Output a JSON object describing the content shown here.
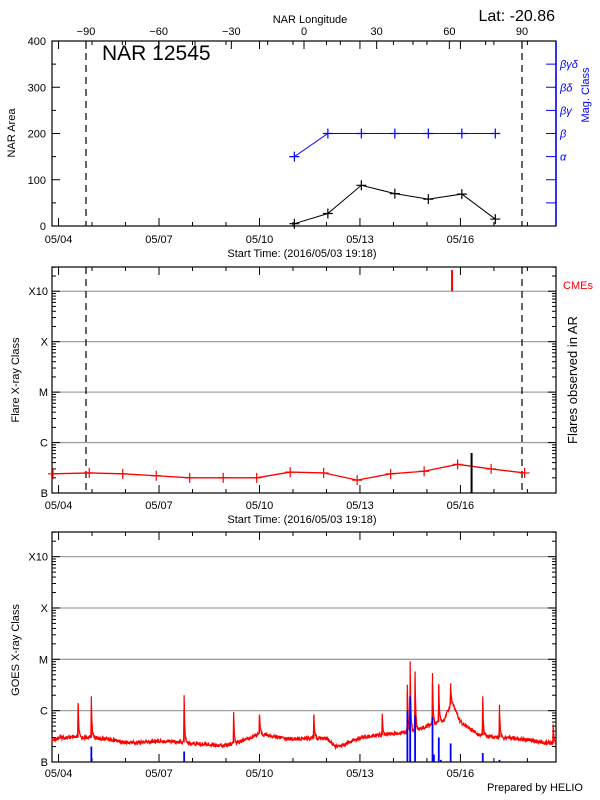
{
  "header": {
    "lat_label": "Lat: -20.86",
    "region_title": "NAR 12545",
    "footer": "Prepared by HELIO"
  },
  "colors": {
    "area": "#000000",
    "mag_class": "#0000ff",
    "flare": "#ff0000",
    "cme": "#ff0000",
    "goes": "#ff0000",
    "goes_events": "#0000ff",
    "grid": "#a0a0a0"
  },
  "chart_data": [
    {
      "type": "line",
      "title": "NAR 12545",
      "xlabel": "Start Time: (2016/05/03 19:18)",
      "x2label": "NAR Longitude",
      "ylabel": "NAR Area",
      "y2label": "Mag. Class",
      "xlim": [
        "2016-05-03 19:18",
        "2016-05-18 20:30"
      ],
      "xtick_labels": [
        "05/04",
        "05/07",
        "05/10",
        "05/13",
        "05/16"
      ],
      "x2lim": [
        -90,
        90
      ],
      "x2tick_labels": [
        "-90",
        "-60",
        "-30",
        "0",
        "30",
        "60",
        "90"
      ],
      "ylim": [
        0,
        400
      ],
      "ytick_labels": [
        "0",
        "100",
        "200",
        "300",
        "400"
      ],
      "y2tick_labels": [
        "α",
        "β",
        "βγ",
        "βδ",
        "βγδ"
      ],
      "limb_longitudes": [
        -90,
        90
      ],
      "area": [
        [
          "2016-05-11 01:00",
          5
        ],
        [
          "2016-05-12 01:00",
          27
        ],
        [
          "2016-05-13 01:00",
          88
        ],
        [
          "2016-05-14 01:00",
          70
        ],
        [
          "2016-05-15 01:00",
          58
        ],
        [
          "2016-05-16 01:00",
          69
        ],
        [
          "2016-05-17 01:00",
          15
        ]
      ],
      "mag_class": [
        [
          "2016-05-11 01:00",
          "α"
        ],
        [
          "2016-05-12 01:00",
          "β"
        ],
        [
          "2016-05-13 01:00",
          "β"
        ],
        [
          "2016-05-14 01:00",
          "β"
        ],
        [
          "2016-05-15 01:00",
          "β"
        ],
        [
          "2016-05-16 01:00",
          "β"
        ],
        [
          "2016-05-17 01:00",
          "β"
        ]
      ]
    },
    {
      "type": "line",
      "xlabel": "Start Time: (2016/05/03 19:18)",
      "ylabel": "Flare X-ray Class",
      "y2label": "Flares observed in AR",
      "cme_label": "CMEs",
      "scale": "log",
      "ytick_labels": [
        "B",
        "C",
        "M",
        "X",
        "X10"
      ],
      "xtick_labels": [
        "05/04",
        "05/07",
        "05/10",
        "05/13",
        "05/16"
      ],
      "flare_class": [
        [
          "2016-05-03 20:00",
          "B2.4"
        ],
        [
          "2016-05-04 22:00",
          "B2.5"
        ],
        [
          "2016-05-05 22:00",
          "B2.4"
        ],
        [
          "2016-05-06 22:00",
          "B2.2"
        ],
        [
          "2016-05-07 22:00",
          "B2.0"
        ],
        [
          "2016-05-08 22:00",
          "B2.0"
        ],
        [
          "2016-05-09 22:00",
          "B2.0"
        ],
        [
          "2016-05-10 22:00",
          "B2.6"
        ],
        [
          "2016-05-11 22:00",
          "B2.5"
        ],
        [
          "2016-05-12 22:00",
          "B1.8"
        ],
        [
          "2016-05-13 22:00",
          "B2.4"
        ],
        [
          "2016-05-14 22:00",
          "B2.7"
        ],
        [
          "2016-05-15 22:00",
          "B3.7"
        ],
        [
          "2016-05-16 22:00",
          "B3.0"
        ],
        [
          "2016-05-17 22:00",
          "B2.5"
        ]
      ],
      "cmes": [
        "2016-05-15 18:00"
      ],
      "flares_observed": [
        [
          "2016-05-16 08:00",
          "B6.2"
        ]
      ]
    },
    {
      "type": "line",
      "ylabel": "GOES X-ray Class",
      "scale": "log",
      "ytick_labels": [
        "B",
        "C",
        "M",
        "X",
        "X10"
      ],
      "xtick_labels": [
        "05/04",
        "05/07",
        "05/10",
        "05/13",
        "05/16"
      ],
      "background": [
        [
          "2016-05-03 19:18",
          "B2.6"
        ],
        [
          "2016-05-04 00:00",
          "B3.0"
        ],
        [
          "2016-05-04 12:00",
          "B3.0"
        ],
        [
          "2016-05-05 00:00",
          "B3.0"
        ],
        [
          "2016-05-05 12:00",
          "B2.8"
        ],
        [
          "2016-05-06 00:00",
          "B2.4"
        ],
        [
          "2016-05-06 12:00",
          "B2.4"
        ],
        [
          "2016-05-07 00:00",
          "B2.6"
        ],
        [
          "2016-05-07 12:00",
          "B2.5"
        ],
        [
          "2016-05-08 00:00",
          "B2.3"
        ],
        [
          "2016-05-08 12:00",
          "B2.2"
        ],
        [
          "2016-05-09 00:00",
          "B2.1"
        ],
        [
          "2016-05-09 12:00",
          "B2.6"
        ],
        [
          "2016-05-10 00:00",
          "B3.6"
        ],
        [
          "2016-05-10 12:00",
          "B3.1"
        ],
        [
          "2016-05-11 00:00",
          "B2.8"
        ],
        [
          "2016-05-11 12:00",
          "B2.9"
        ],
        [
          "2016-05-12 00:00",
          "B2.9"
        ],
        [
          "2016-05-12 06:00",
          "B2.0"
        ],
        [
          "2016-05-12 12:00",
          "B2.1"
        ],
        [
          "2016-05-13 00:00",
          "B3.0"
        ],
        [
          "2016-05-13 12:00",
          "B3.3"
        ],
        [
          "2016-05-14 00:00",
          "B3.5"
        ],
        [
          "2016-05-14 12:00",
          "B4.0"
        ],
        [
          "2016-05-15 00:00",
          "B5.0"
        ],
        [
          "2016-05-15 12:00",
          "B6.5"
        ],
        [
          "2016-05-15 18:00",
          "C1.5"
        ],
        [
          "2016-05-16 00:00",
          "B6.0"
        ],
        [
          "2016-05-16 12:00",
          "B3.5"
        ],
        [
          "2016-05-17 00:00",
          "B3.0"
        ],
        [
          "2016-05-17 12:00",
          "B3.0"
        ],
        [
          "2016-05-18 00:00",
          "B2.7"
        ],
        [
          "2016-05-18 12:00",
          "B2.4"
        ],
        [
          "2016-05-18 20:30",
          "B2.3"
        ]
      ],
      "peaks": [
        [
          "2016-05-04 14:00",
          "C1.4"
        ],
        [
          "2016-05-04 23:30",
          "C1.9"
        ],
        [
          "2016-05-07 18:00",
          "C2.0"
        ],
        [
          "2016-05-09 05:30",
          "B9.4"
        ],
        [
          "2016-05-10 00:00",
          "B8.4"
        ],
        [
          "2016-05-11 15:00",
          "B8.4"
        ],
        [
          "2016-05-13 16:00",
          "B8.7"
        ],
        [
          "2016-05-14 10:00",
          "C3.2"
        ],
        [
          "2016-05-14 12:00",
          "C9.1"
        ],
        [
          "2016-05-14 15:30",
          "C5.8"
        ],
        [
          "2016-05-15 04:00",
          "C5.4"
        ],
        [
          "2016-05-15 08:30",
          "C3.3"
        ],
        [
          "2016-05-15 17:00",
          "C3.4"
        ],
        [
          "2016-05-16 16:00",
          "C1.9"
        ],
        [
          "2016-05-17 04:00",
          "C1.3"
        ],
        [
          "2016-05-18 18:30",
          "B5.4"
        ]
      ],
      "events": [
        [
          "2016-05-04 23:30",
          "B2.0"
        ],
        [
          "2016-05-07 18:00",
          "B1.6"
        ],
        [
          "2016-05-14 10:00",
          "C1.0"
        ],
        [
          "2016-05-14 12:00",
          "C1.9"
        ],
        [
          "2016-05-14 15:30",
          "B8.1"
        ],
        [
          "2016-05-15 04:00",
          "B7.5"
        ],
        [
          "2016-05-15 05:00",
          "B1.4"
        ],
        [
          "2016-05-15 08:30",
          "B3.0"
        ],
        [
          "2016-05-15 10:00",
          "B1.1"
        ],
        [
          "2016-05-15 17:00",
          "B2.3"
        ],
        [
          "2016-05-16 16:00",
          "B1.5"
        ],
        [
          "2016-05-17 04:00",
          "B1.1"
        ]
      ]
    }
  ]
}
